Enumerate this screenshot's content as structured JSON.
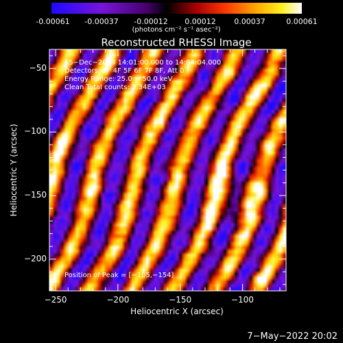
{
  "colorbar": {
    "ticks": [
      "-0.00061",
      "-0.00037",
      "-0.00012",
      "0.00012",
      "0.00037",
      "0.00061"
    ],
    "unit_label": "(photons cm⁻² s⁻¹ asec⁻²)"
  },
  "chart_data": {
    "type": "heatmap",
    "title": "Reconstructed RHESSI Image",
    "xlabel": "Heliocentric X (arcsec)",
    "ylabel": "Heliocentric Y (arcsec)",
    "xlim": [
      -255,
      -65
    ],
    "ylim": [
      -225,
      -35
    ],
    "x_ticks": [
      -250,
      -200,
      -150,
      -100
    ],
    "y_ticks": [
      -50,
      -100,
      -150,
      -200
    ],
    "x_tick_labels": [
      "−250",
      "−200",
      "−150",
      "−100"
    ],
    "y_tick_labels": [
      "−50",
      "−100",
      "−150",
      "−200"
    ],
    "color_range": [
      -0.00061,
      0.00061
    ],
    "colormap": "RHESSI (blue-purple-black-red-orange-yellow-white)",
    "stripes": "diagonal bright bands oriented lower-left to upper-right",
    "peak": [
      -105,
      -154
    ],
    "annotations": [
      "15−Dec−2003 14:01:00.000 to 14:04:04.000",
      "Detectors: 3F 4F 5F 6F 7F 8F, Att 0",
      "Energy Range: 25.0 − 50.0 keV",
      "Clean     Total counts: 3.34E+03"
    ],
    "peak_label": "Position of Peak = [−105,−154]"
  },
  "footer": {
    "date": "7−May−2022 20:02"
  }
}
